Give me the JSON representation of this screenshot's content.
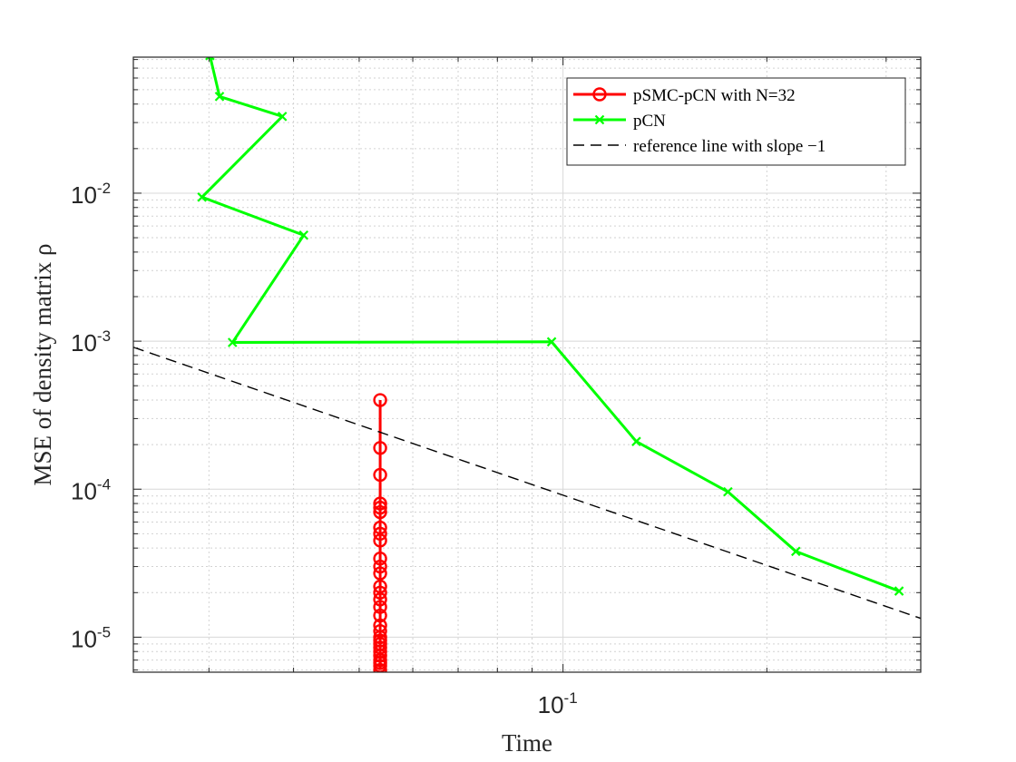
{
  "chart_data": {
    "type": "line",
    "title": "",
    "xlabel": "Time",
    "ylabel": "MSE of density matrix ρ",
    "x_scale": "log",
    "y_scale": "log",
    "xlim": [
      0.0232,
      0.3375
    ],
    "ylim": [
      5.8e-06,
      0.083
    ],
    "grid": true,
    "minor_grid": true,
    "legend_position": "top-right",
    "x_ticks": [
      {
        "value": 0.1,
        "base": "10",
        "exponent": "-1"
      }
    ],
    "y_ticks": [
      {
        "value": 1e-05,
        "base": "10",
        "exponent": "-5"
      },
      {
        "value": 0.0001,
        "base": "10",
        "exponent": "-4"
      },
      {
        "value": 0.001,
        "base": "10",
        "exponent": "-3"
      },
      {
        "value": 0.01,
        "base": "10",
        "exponent": "-2"
      }
    ],
    "series": [
      {
        "name": "pSMC-pCN with N=32",
        "color": "#ff0000",
        "marker": "circle",
        "linestyle": "solid",
        "x": [
          0.0537,
          0.0537,
          0.0537,
          0.0537,
          0.0537,
          0.0537,
          0.0537,
          0.0537,
          0.0537,
          0.0537,
          0.0537,
          0.0537,
          0.0537,
          0.0537,
          0.0537,
          0.0537,
          0.0537,
          0.0537,
          0.0537,
          0.0537,
          0.0537,
          0.0537,
          0.0537,
          0.0537,
          0.0537,
          0.0537,
          0.0537,
          0.0537,
          0.0537
        ],
        "y": [
          0.0004,
          0.00019,
          0.000125,
          8e-05,
          7.5e-05,
          7e-05,
          5.5e-05,
          5e-05,
          4.5e-05,
          3.4e-05,
          3e-05,
          2.7e-05,
          2.2e-05,
          2e-05,
          1.8e-05,
          1.6e-05,
          1.4e-05,
          1.2e-05,
          1.1e-05,
          1e-05,
          9.5e-06,
          9e-06,
          8.5e-06,
          8e-06,
          7.5e-06,
          7e-06,
          6.7e-06,
          6.4e-06,
          6e-06
        ]
      },
      {
        "name": "pCN",
        "color": "#00ff00",
        "marker": "x",
        "linestyle": "solid",
        "x": [
          0.0301,
          0.0311,
          0.0385,
          0.0293,
          0.0414,
          0.0325,
          0.0962,
          0.1283,
          0.1752,
          0.2207,
          0.3135
        ],
        "y": [
          0.085,
          0.045,
          0.033,
          0.0094,
          0.0052,
          0.00098,
          0.00099,
          0.00021,
          9.6e-05,
          3.8e-05,
          2.05e-05
        ]
      },
      {
        "name": "reference line with slope −1",
        "color": "#000000",
        "marker": "none",
        "linestyle": "dashed",
        "x": [
          0.0232,
          0.3375
        ],
        "y": [
          0.00091,
          1.34e-05
        ]
      }
    ]
  }
}
